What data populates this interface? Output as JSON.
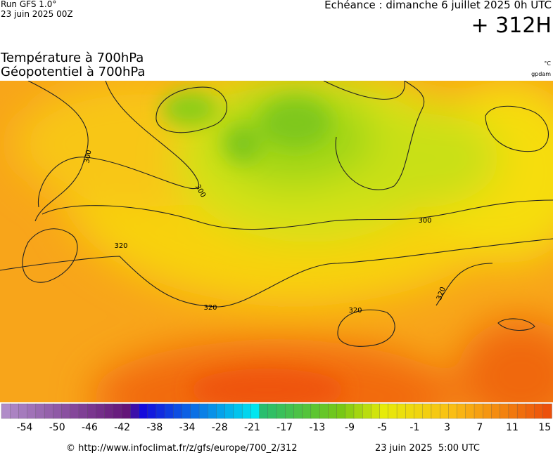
{
  "header": {
    "run": "Run GFS 1.0°",
    "run_date": "23 juin 2025 00Z",
    "valid": "Echéance : dimanche 6 juillet 2025 0h UTC",
    "lead": "+ 312H",
    "field1": "Température à 700hPa",
    "field2": "Géopotentiel à 700hPa",
    "unit1": "°C",
    "unit2": "gpdam"
  },
  "map": {
    "contour_labels": [
      "300",
      "300",
      "320",
      "300",
      "320",
      "320",
      "320"
    ]
  },
  "legend": {
    "labels": [
      "-54",
      "-50",
      "-46",
      "-42",
      "-38",
      "-34",
      "-28",
      "-21",
      "-17",
      "-13",
      "-9",
      "-5",
      "-1",
      "3",
      "7",
      "11",
      "15"
    ]
  },
  "footer": {
    "source": "© http://www.infoclimat.fr/z/gfs/europe/700_2/312",
    "issued": "23 juin 2025  5:00 UTC"
  }
}
